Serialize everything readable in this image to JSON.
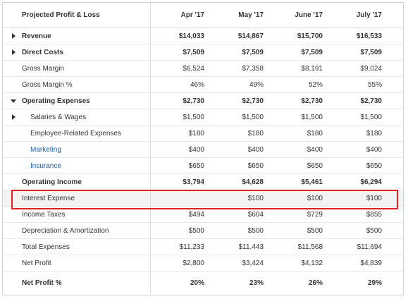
{
  "header": {
    "title": "Projected Profit & Loss",
    "columns": [
      "Apr '17",
      "May '17",
      "June '17",
      "July '17"
    ]
  },
  "rows": [
    {
      "label": "Revenue",
      "values": [
        "$14,033",
        "$14,867",
        "$15,700",
        "$16,533"
      ]
    },
    {
      "label": "Direct Costs",
      "values": [
        "$7,509",
        "$7,509",
        "$7,509",
        "$7,509"
      ]
    },
    {
      "label": "Gross Margin",
      "values": [
        "$6,524",
        "$7,358",
        "$8,191",
        "$9,024"
      ]
    },
    {
      "label": "Gross Margin %",
      "values": [
        "46%",
        "49%",
        "52%",
        "55%"
      ]
    },
    {
      "label": "Operating Expenses",
      "values": [
        "$2,730",
        "$2,730",
        "$2,730",
        "$2,730"
      ]
    },
    {
      "label": "Salaries & Wages",
      "values": [
        "$1,500",
        "$1,500",
        "$1,500",
        "$1,500"
      ]
    },
    {
      "label": "Employee-Related Expenses",
      "values": [
        "$180",
        "$180",
        "$180",
        "$180"
      ]
    },
    {
      "label": "Marketing",
      "values": [
        "$400",
        "$400",
        "$400",
        "$400"
      ]
    },
    {
      "label": "Insurance",
      "values": [
        "$650",
        "$650",
        "$650",
        "$650"
      ]
    },
    {
      "label": "Operating Income",
      "values": [
        "$3,794",
        "$4,628",
        "$5,461",
        "$6,294"
      ]
    },
    {
      "label": "Interest Expense",
      "values": [
        "",
        "$100",
        "$100",
        "$100"
      ]
    },
    {
      "label": "Income Taxes",
      "values": [
        "$494",
        "$604",
        "$729",
        "$855"
      ]
    },
    {
      "label": "Depreciation & Amortization",
      "values": [
        "$500",
        "$500",
        "$500",
        "$500"
      ]
    },
    {
      "label": "Total Expenses",
      "values": [
        "$11,233",
        "$11,443",
        "$11,568",
        "$11,694"
      ]
    },
    {
      "label": "Net Profit",
      "values": [
        "$2,800",
        "$3,424",
        "$4,132",
        "$4,839"
      ]
    },
    {
      "label": "Net Profit %",
      "values": [
        "20%",
        "23%",
        "26%",
        "29%"
      ]
    }
  ],
  "colors": {
    "highlight_border": "#e02020",
    "link": "#1a5fb4",
    "grid": "#e6e8ea"
  },
  "icons": {
    "expand": "caret-right-icon",
    "collapse": "caret-down-icon"
  }
}
